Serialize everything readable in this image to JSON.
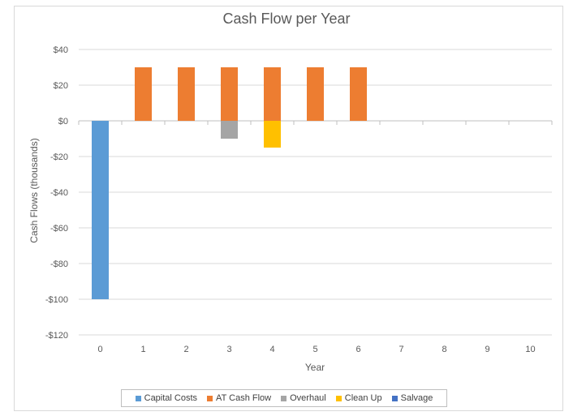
{
  "chart_data": {
    "type": "bar",
    "stacked": true,
    "title": "Cash Flow per Year",
    "xlabel": "Year",
    "ylabel": "Cash Flows (thousands)",
    "categories": [
      "0",
      "1",
      "2",
      "3",
      "4",
      "5",
      "6",
      "7",
      "8",
      "9",
      "10"
    ],
    "ylim": [
      -120,
      40
    ],
    "yticks": [
      40,
      20,
      0,
      -20,
      -40,
      -60,
      -80,
      -100,
      -120
    ],
    "ytick_labels": [
      "$40",
      "$20",
      "$0",
      "-$20",
      "-$40",
      "-$60",
      "-$80",
      "-$100",
      "-$120"
    ],
    "grid": true,
    "legend_position": "bottom",
    "series": [
      {
        "name": "Capital Costs",
        "color": "#5b9bd5",
        "values": [
          -100,
          0,
          0,
          0,
          0,
          0,
          0,
          0,
          0,
          0,
          0
        ]
      },
      {
        "name": "AT Cash Flow",
        "color": "#ed7d31",
        "values": [
          0,
          30,
          30,
          30,
          30,
          30,
          30,
          0,
          0,
          0,
          0
        ]
      },
      {
        "name": "Overhaul",
        "color": "#a5a5a5",
        "values": [
          0,
          0,
          0,
          -10,
          0,
          0,
          0,
          0,
          0,
          0,
          0
        ]
      },
      {
        "name": "Clean Up",
        "color": "#ffc000",
        "values": [
          0,
          0,
          0,
          0,
          -15,
          0,
          0,
          0,
          0,
          0,
          0
        ]
      },
      {
        "name": "Salvage",
        "color": "#4472c4",
        "values": [
          0,
          0,
          0,
          0,
          0,
          0,
          0,
          0,
          0,
          0,
          0
        ]
      }
    ]
  }
}
